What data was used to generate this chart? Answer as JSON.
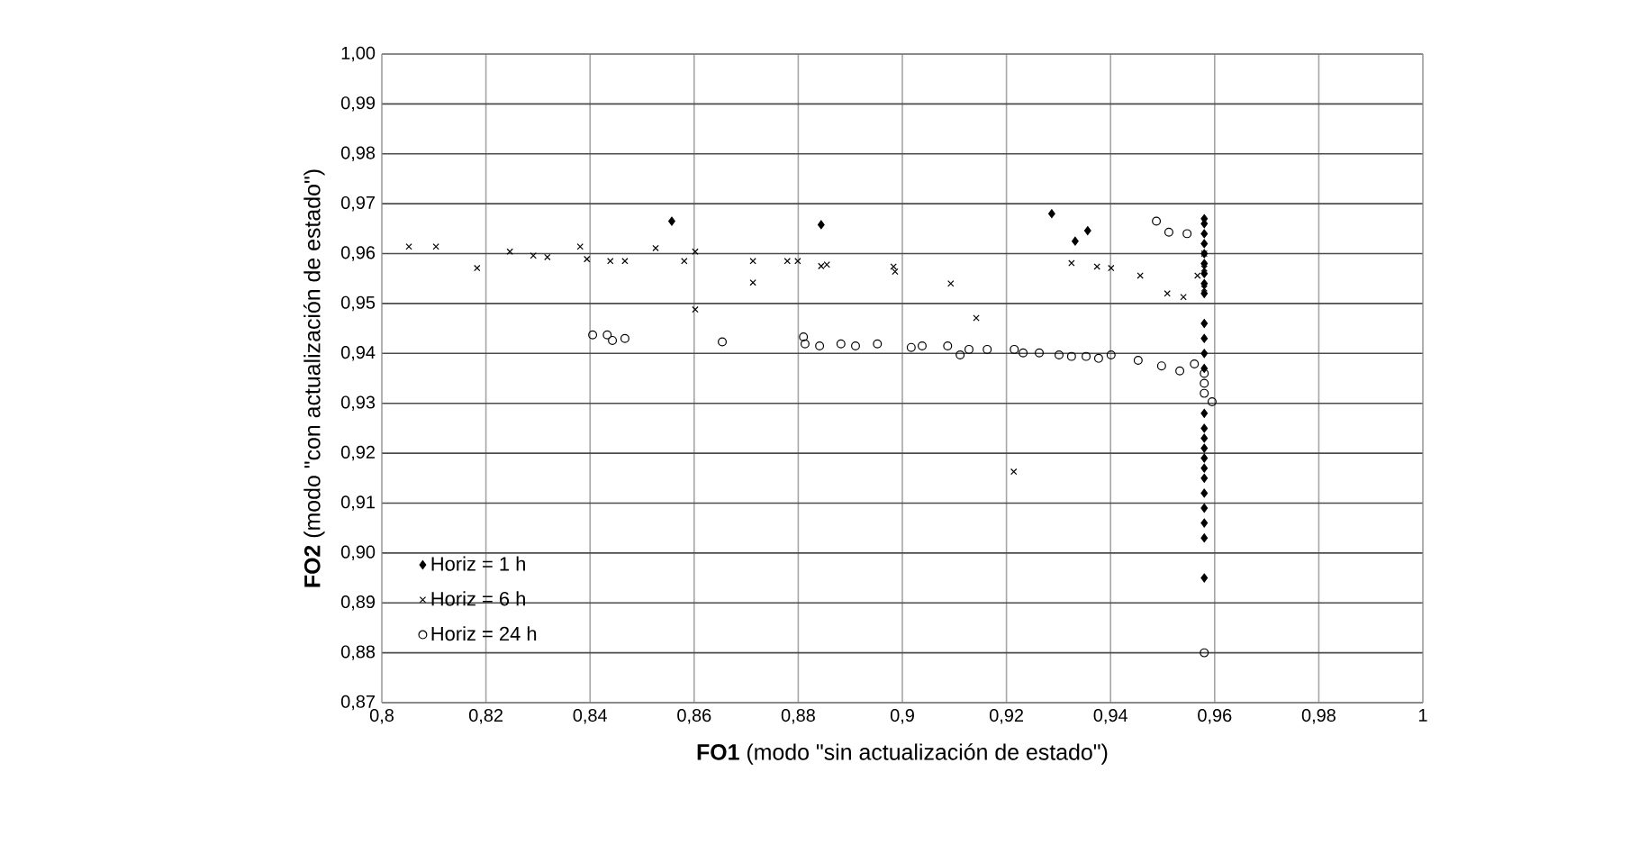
{
  "chart_data": {
    "type": "scatter",
    "xlabel": "**FO1** (modo \"sin actualización de estado\")",
    "ylabel": "**FO2** (modo \"con actualización de estado\")",
    "xlim": [
      0.8,
      1
    ],
    "ylim": [
      0.87,
      1.0
    ],
    "xticks": [
      {
        "value": 0.8,
        "label": "0,8"
      },
      {
        "value": 0.82,
        "label": "0,82"
      },
      {
        "value": 0.84,
        "label": "0,84"
      },
      {
        "value": 0.86,
        "label": "0,86"
      },
      {
        "value": 0.88,
        "label": "0,88"
      },
      {
        "value": 0.9,
        "label": "0,9"
      },
      {
        "value": 0.92,
        "label": "0,92"
      },
      {
        "value": 0.94,
        "label": "0,94"
      },
      {
        "value": 0.96,
        "label": "0,96"
      },
      {
        "value": 0.98,
        "label": "0,98"
      },
      {
        "value": 1,
        "label": "1"
      }
    ],
    "yticks": [
      {
        "value": 0.87,
        "label": "0,87"
      },
      {
        "value": 0.88,
        "label": "0,88"
      },
      {
        "value": 0.89,
        "label": "0,89"
      },
      {
        "value": 0.9,
        "label": "0,90"
      },
      {
        "value": 0.91,
        "label": "0,91"
      },
      {
        "value": 0.92,
        "label": "0,92"
      },
      {
        "value": 0.93,
        "label": "0,93"
      },
      {
        "value": 0.94,
        "label": "0,94"
      },
      {
        "value": 0.95,
        "label": "0,95"
      },
      {
        "value": 0.96,
        "label": "0,96"
      },
      {
        "value": 0.97,
        "label": "0,97"
      },
      {
        "value": 0.98,
        "label": "0,98"
      },
      {
        "value": 0.99,
        "label": "0,99"
      },
      {
        "value": 1.0,
        "label": "1,00"
      }
    ],
    "grid": true,
    "legend": "bottom left",
    "series": [
      {
        "name": "Horiz = 1 h",
        "color": "#000000",
        "marker": "diamond",
        "x": [
          0.8557,
          0.8844,
          0.9287,
          0.9332,
          0.9356,
          0.958,
          0.958,
          0.958,
          0.958,
          0.958,
          0.958,
          0.958,
          0.958,
          0.958,
          0.958,
          0.958,
          0.958,
          0.958,
          0.958,
          0.958,
          0.958,
          0.958,
          0.958,
          0.958,
          0.958,
          0.958,
          0.958,
          0.958,
          0.958,
          0.958
        ],
        "values": [
          0.9665,
          0.9658,
          0.968,
          0.9625,
          0.9646,
          0.967,
          0.966,
          0.964,
          0.962,
          0.96,
          0.958,
          0.956,
          0.954,
          0.952,
          0.946,
          0.943,
          0.94,
          0.937,
          0.928,
          0.925,
          0.923,
          0.921,
          0.919,
          0.917,
          0.915,
          0.912,
          0.909,
          0.906,
          0.903,
          0.895
        ]
      },
      {
        "name": "Horiz = 6 h",
        "color": "#000000",
        "marker": "cross",
        "x": [
          0.8052,
          0.8104,
          0.8183,
          0.8246,
          0.8291,
          0.8318,
          0.8381,
          0.8394,
          0.8439,
          0.8467,
          0.8526,
          0.8581,
          0.8602,
          0.8602,
          0.8713,
          0.8713,
          0.8779,
          0.8799,
          0.8844,
          0.8855,
          0.8983,
          0.8986,
          0.9093,
          0.9142,
          0.9214,
          0.9325,
          0.9374,
          0.9401,
          0.9457,
          0.9509,
          0.954,
          0.9567,
          0.958,
          0.958,
          0.958
        ],
        "values": [
          0.9614,
          0.9614,
          0.9571,
          0.9604,
          0.9596,
          0.9593,
          0.9614,
          0.9589,
          0.9585,
          0.9585,
          0.9611,
          0.9585,
          0.9604,
          0.9488,
          0.9585,
          0.9542,
          0.9585,
          0.9585,
          0.9575,
          0.9578,
          0.9574,
          0.9564,
          0.954,
          0.9471,
          0.9163,
          0.9581,
          0.9574,
          0.9571,
          0.9556,
          0.952,
          0.9513,
          0.9556,
          0.96,
          0.957,
          0.953
        ]
      },
      {
        "name": "Horiz = 24 h",
        "color": "#000000",
        "marker": "circle",
        "x": [
          0.8405,
          0.8433,
          0.8443,
          0.8467,
          0.8654,
          0.881,
          0.8813,
          0.8841,
          0.8882,
          0.891,
          0.8952,
          0.9017,
          0.9038,
          0.9087,
          0.9111,
          0.9128,
          0.9163,
          0.9215,
          0.9232,
          0.9263,
          0.9301,
          0.9325,
          0.9353,
          0.9377,
          0.9401,
          0.9453,
          0.9498,
          0.9533,
          0.9561,
          0.9488,
          0.9512,
          0.9547,
          0.958,
          0.958,
          0.958,
          0.9595,
          0.958
        ],
        "values": [
          0.9437,
          0.9437,
          0.9426,
          0.943,
          0.9423,
          0.9433,
          0.9419,
          0.9415,
          0.9419,
          0.9415,
          0.9419,
          0.9412,
          0.9415,
          0.9415,
          0.9397,
          0.9408,
          0.9408,
          0.9408,
          0.9401,
          0.9401,
          0.9397,
          0.9394,
          0.9394,
          0.939,
          0.9397,
          0.9386,
          0.9375,
          0.9365,
          0.9379,
          0.9665,
          0.9643,
          0.964,
          0.936,
          0.934,
          0.932,
          0.9303,
          0.88
        ]
      }
    ]
  }
}
